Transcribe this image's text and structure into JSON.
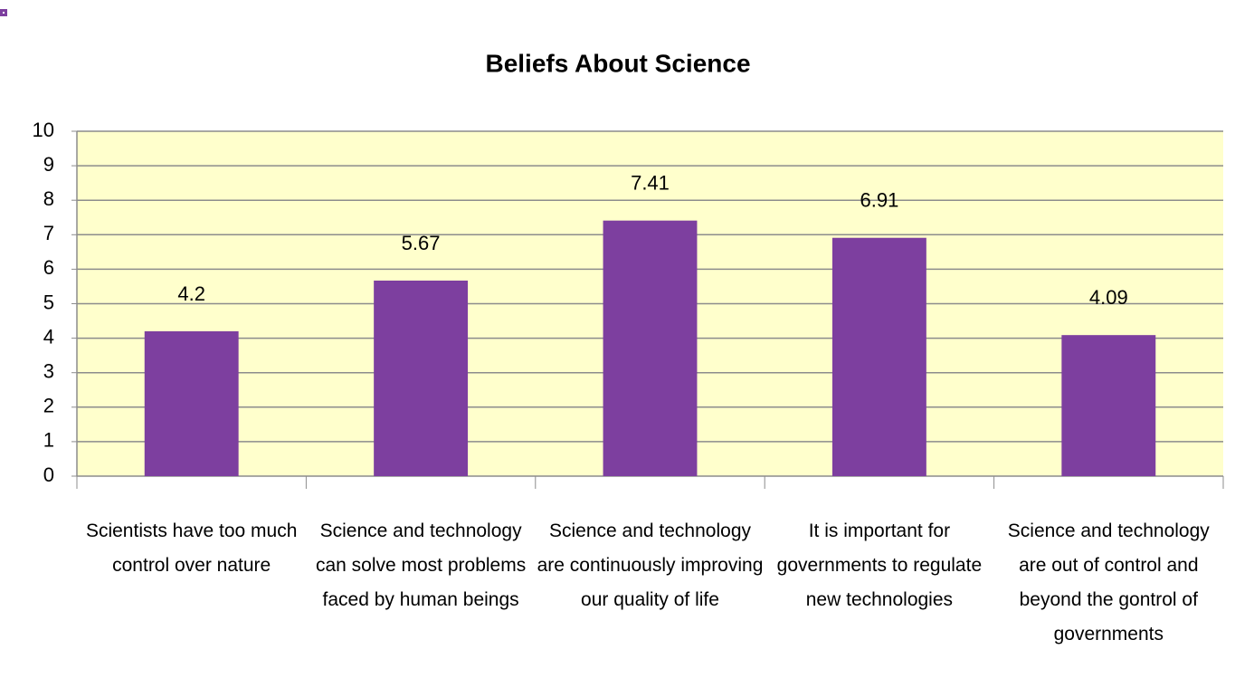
{
  "chart_data": {
    "type": "bar",
    "title": "Beliefs About Science",
    "categories": [
      "Scientists have too much control over nature",
      "Science and technology can solve most problems faced by human beings",
      "Science and technology are continuously improving our quality of life",
      "It is important for governments to regulate new technologies",
      "Science and technology are out of control and beyond the gontrol of governments"
    ],
    "values": [
      4.2,
      5.67,
      7.41,
      6.91,
      4.09
    ],
    "color": "#7d3f9f",
    "ylim": [
      0,
      10
    ],
    "yticks": [
      0,
      1,
      2,
      3,
      4,
      5,
      6,
      7,
      8,
      9,
      10
    ],
    "grid": true
  }
}
